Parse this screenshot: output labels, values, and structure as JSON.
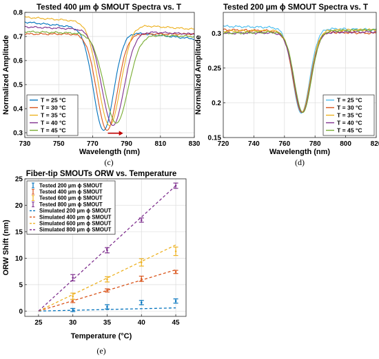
{
  "colors": {
    "blue": "#0072BD",
    "orange": "#D95319",
    "yellow": "#EDB120",
    "purple": "#7E2F8E",
    "green": "#77AC30",
    "teal": "#4DBEEE",
    "arrow": "#C00000"
  },
  "chart_data": [
    {
      "type": "line",
      "panel_label": "(c)",
      "title": "Tested 400 µm ϕ SMOUT Spectra vs. T",
      "xlabel": "Wavelength (nm)",
      "ylabel": "Normalized Amplitude",
      "xlim": [
        730,
        830
      ],
      "ylim": [
        0.28,
        0.8
      ],
      "xticks": [
        730,
        750,
        770,
        790,
        810,
        830
      ],
      "yticks": [
        0.3,
        0.4,
        0.5,
        0.6,
        0.7,
        0.8
      ],
      "xtick_labels": [
        "730",
        "750",
        "770",
        "790",
        "810",
        "830"
      ],
      "ytick_labels": [
        "0.3",
        "0.4",
        "0.5",
        "0.6",
        "0.7",
        "0.8"
      ],
      "grid": true,
      "legend_position": "bottom-left",
      "annotation": "red arrow showing dip shifting to longer wavelength",
      "series": [
        {
          "name": "T = 25 °C",
          "color": "blue",
          "base_left": 0.76,
          "base_right": 0.69,
          "dip_x": 776.5,
          "dip_y": 0.31,
          "width": 6
        },
        {
          "name": "T = 30 °C",
          "color": "orange",
          "base_left": 0.71,
          "base_right": 0.71,
          "dip_x": 778.5,
          "dip_y": 0.31,
          "width": 6
        },
        {
          "name": "T = 35 °C",
          "color": "yellow",
          "base_left": 0.78,
          "base_right": 0.73,
          "dip_x": 780,
          "dip_y": 0.33,
          "width": 6.5
        },
        {
          "name": "T = 40 °C",
          "color": "purple",
          "base_left": 0.74,
          "base_right": 0.71,
          "dip_x": 782,
          "dip_y": 0.33,
          "width": 6.5
        },
        {
          "name": "T = 45 °C",
          "color": "green",
          "base_left": 0.72,
          "base_right": 0.7,
          "dip_x": 784,
          "dip_y": 0.34,
          "width": 7
        }
      ]
    },
    {
      "type": "line",
      "panel_label": "(d)",
      "title": "Tested 200 µm ϕ SMOUT Spectra vs. T",
      "xlabel": "Wavelength (nm)",
      "ylabel": "Normalized Amplitude",
      "xlim": [
        720,
        820
      ],
      "ylim": [
        0.15,
        0.33
      ],
      "xticks": [
        720,
        740,
        760,
        780,
        800,
        820
      ],
      "yticks": [
        0.15,
        0.2,
        0.25,
        0.3
      ],
      "xtick_labels": [
        "720",
        "740",
        "760",
        "780",
        "800",
        "820"
      ],
      "ytick_labels": [
        "0.15",
        "0.2",
        "0.25",
        "0.3"
      ],
      "grid": true,
      "legend_position": "bottom-right",
      "series": [
        {
          "name": "T = 25 °C",
          "color": "teal",
          "base_left": 0.31,
          "base_right": 0.305,
          "dip_x": 771,
          "dip_y": 0.185,
          "width": 5.5
        },
        {
          "name": "T = 30 °C",
          "color": "orange",
          "base_left": 0.305,
          "base_right": 0.3,
          "dip_x": 771.3,
          "dip_y": 0.186,
          "width": 5.5
        },
        {
          "name": "T = 35 °C",
          "color": "yellow",
          "base_left": 0.303,
          "base_right": 0.305,
          "dip_x": 771.5,
          "dip_y": 0.187,
          "width": 5.5
        },
        {
          "name": "T = 40 °C",
          "color": "purple",
          "base_left": 0.3,
          "base_right": 0.302,
          "dip_x": 771.7,
          "dip_y": 0.186,
          "width": 5.5
        },
        {
          "name": "T = 45 °C",
          "color": "green",
          "base_left": 0.3,
          "base_right": 0.305,
          "dip_x": 772,
          "dip_y": 0.186,
          "width": 5.5
        }
      ]
    },
    {
      "type": "scatter",
      "panel_label": "(e)",
      "title": "Fiber-tip SMOUTs ORW vs. Temperature",
      "xlabel": "Temperature (°C)",
      "ylabel": "ORW Shift (nm)",
      "xlim": [
        23,
        46.5
      ],
      "ylim": [
        -1,
        25
      ],
      "xticks": [
        25,
        30,
        35,
        40,
        45
      ],
      "yticks": [
        0,
        5,
        10,
        15,
        20,
        25
      ],
      "xtick_labels": [
        "25",
        "30",
        "35",
        "40",
        "45"
      ],
      "ytick_labels": [
        "0",
        "5",
        "10",
        "15",
        "20",
        "25"
      ],
      "grid": true,
      "legend_position": "top-left",
      "x": [
        30,
        35,
        40,
        45
      ],
      "series": [
        {
          "name": "Tested 200 µm ϕ SMOUT",
          "kind": "errorbar",
          "color": "blue",
          "y": [
            0.2,
            0.8,
            1.6,
            1.9
          ],
          "err": [
            0.3,
            0.4,
            0.4,
            0.4
          ]
        },
        {
          "name": "Tested 400 µm ϕ SMOUT",
          "kind": "errorbar",
          "color": "orange",
          "y": [
            1.9,
            3.9,
            6.1,
            7.4
          ],
          "err": [
            0.3,
            0.3,
            0.5,
            0.3
          ]
        },
        {
          "name": "Tested 600 µm ϕ SMOUT",
          "kind": "errorbar",
          "color": "yellow",
          "y": [
            2.8,
            6.0,
            9.2,
            11.3
          ],
          "err": [
            0.6,
            0.5,
            0.7,
            0.8
          ]
        },
        {
          "name": "Tested 800 µm ϕ SMOUT",
          "kind": "errorbar",
          "color": "purple",
          "y": [
            6.3,
            11.5,
            17.2,
            23.7
          ],
          "err": [
            0.6,
            0.5,
            0.4,
            0.5
          ]
        },
        {
          "name": "Simulated 200 µm ϕ SMOUT",
          "kind": "dashed",
          "color": "blue",
          "x": [
            25,
            45
          ],
          "y": [
            0,
            0.6
          ]
        },
        {
          "name": "Simulated 400 µm ϕ SMOUT",
          "kind": "dashed",
          "color": "orange",
          "x": [
            25,
            45
          ],
          "y": [
            0,
            7.8
          ]
        },
        {
          "name": "Simulated 600 µm ϕ SMOUT",
          "kind": "dashed",
          "color": "yellow",
          "x": [
            25,
            45
          ],
          "y": [
            0,
            12.5
          ]
        },
        {
          "name": "Simulated 800 µm ϕ SMOUT",
          "kind": "dashed",
          "color": "purple",
          "x": [
            25,
            45
          ],
          "y": [
            0,
            23.7
          ]
        }
      ]
    }
  ]
}
